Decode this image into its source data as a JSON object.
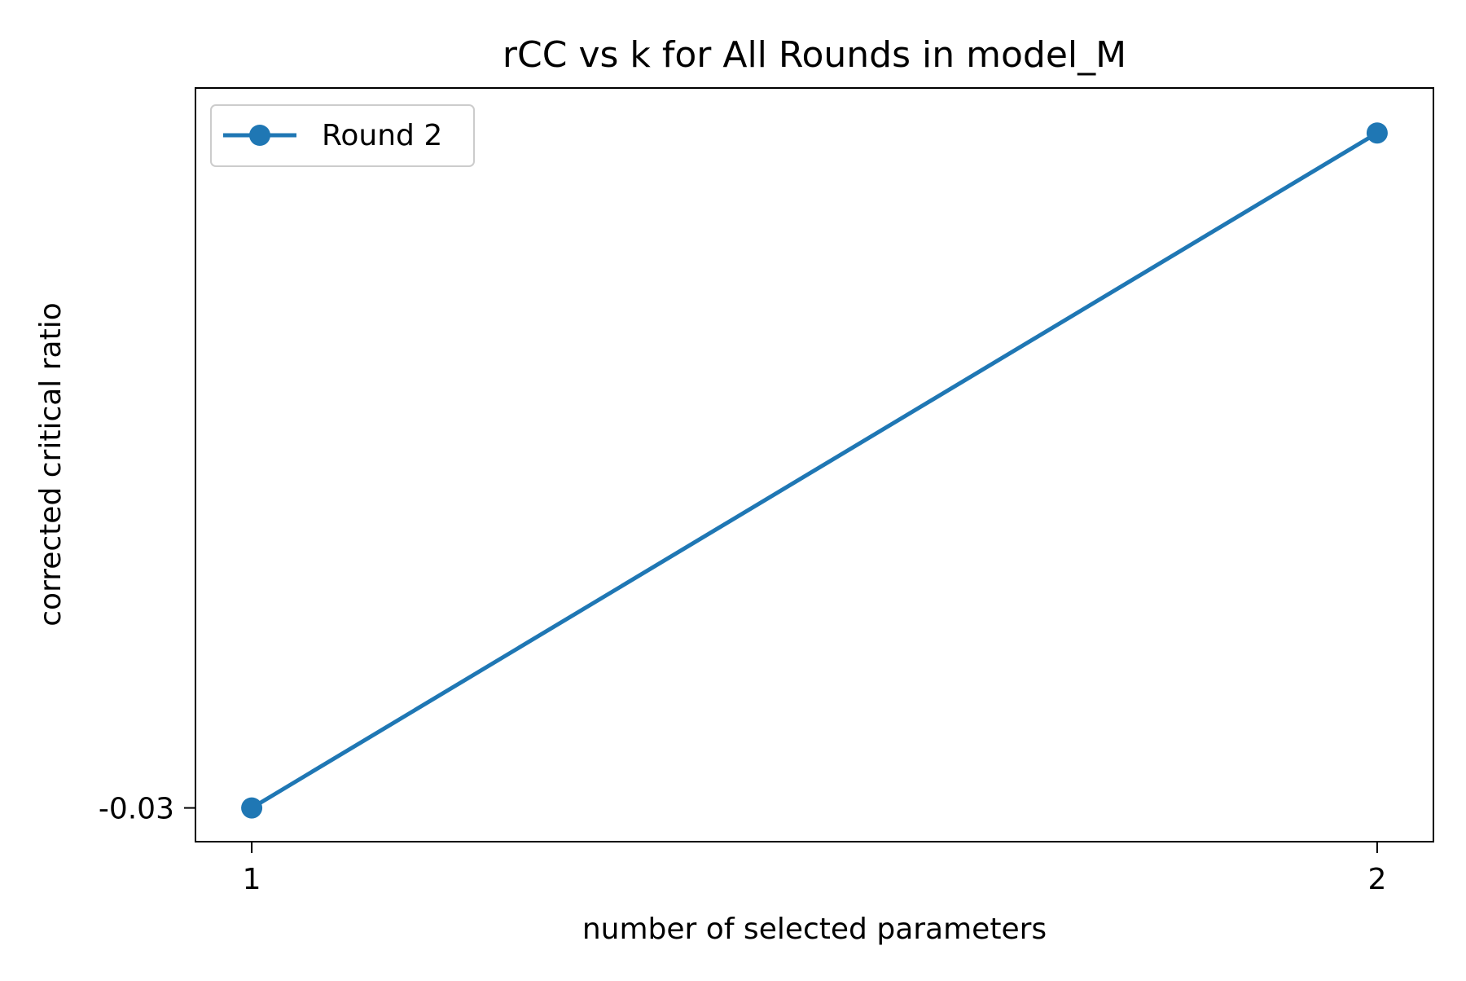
{
  "chart_data": {
    "type": "line",
    "title": "rCC vs k for All Rounds in model_M",
    "xlabel": "number of selected parameters",
    "ylabel": "corrected critical ratio",
    "x_ticks": [
      1,
      2
    ],
    "x_tick_labels": [
      "1",
      "2"
    ],
    "y_ticks": [
      -0.03
    ],
    "y_tick_labels": [
      "-0.03"
    ],
    "xlim": [
      0.95,
      2.05
    ],
    "ylim": [
      -0.0315,
      0.002
    ],
    "grid": false,
    "legend_position": "top-left",
    "series": [
      {
        "name": "Round 2",
        "color": "#1f77b4",
        "marker": "circle",
        "x": [
          1,
          2
        ],
        "y": [
          -0.03,
          0.0
        ]
      }
    ]
  }
}
